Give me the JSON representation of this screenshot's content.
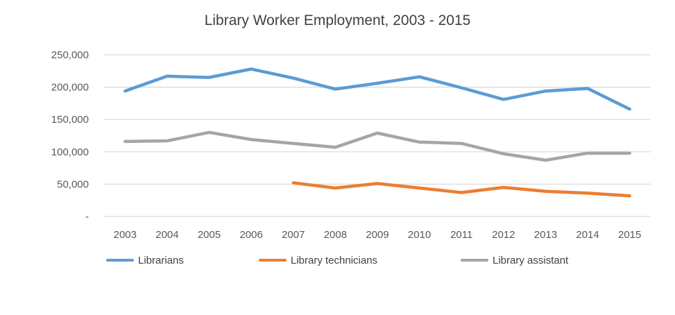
{
  "chart_data": {
    "type": "line",
    "title": "Library Worker Employment, 2003 - 2015",
    "x": [
      "2003",
      "2004",
      "2005",
      "2006",
      "2007",
      "2008",
      "2009",
      "2010",
      "2011",
      "2012",
      "2013",
      "2014",
      "2015"
    ],
    "ylim": [
      0,
      250000
    ],
    "yticks": [
      0,
      50000,
      100000,
      150000,
      200000,
      250000
    ],
    "ytick_labels": [
      "-",
      "50,000",
      "100,000",
      "150,000",
      "200,000",
      "250,000"
    ],
    "grid": true,
    "legend_position": "bottom",
    "series": [
      {
        "name": "Librarians",
        "color": "#5B9BD5",
        "values": [
          194000,
          217000,
          215000,
          228000,
          214000,
          197000,
          206000,
          216000,
          199000,
          181000,
          194000,
          198000,
          166000
        ]
      },
      {
        "name": "Library technicians",
        "color": "#ED7D31",
        "values": [
          null,
          null,
          null,
          null,
          52000,
          44000,
          51000,
          44000,
          37000,
          45000,
          39000,
          36000,
          32000
        ]
      },
      {
        "name": "Library assistant",
        "color": "#A5A5A5",
        "values": [
          116000,
          117000,
          130000,
          119000,
          113000,
          107000,
          129000,
          115000,
          113000,
          97000,
          87000,
          98000,
          98000
        ]
      }
    ]
  }
}
